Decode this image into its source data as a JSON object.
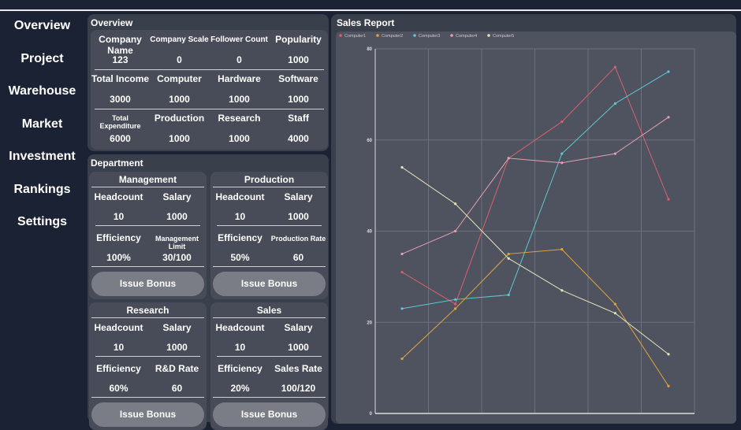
{
  "sidebar": {
    "items": [
      {
        "label": "Overview"
      },
      {
        "label": "Project"
      },
      {
        "label": "Warehouse"
      },
      {
        "label": "Market"
      },
      {
        "label": "Investment"
      },
      {
        "label": "Rankings"
      },
      {
        "label": "Settings"
      }
    ]
  },
  "overview": {
    "title": "Overview",
    "rows": [
      [
        {
          "label": "Company Name",
          "value": "123"
        },
        {
          "label": "Company Scale",
          "value": "0"
        },
        {
          "label": "Follower Count",
          "value": "0"
        },
        {
          "label": "Popularity",
          "value": "1000"
        }
      ],
      [
        {
          "label": "Total Income",
          "value": "3000"
        },
        {
          "label": "Computer",
          "value": "1000"
        },
        {
          "label": "Hardware",
          "value": "1000"
        },
        {
          "label": "Software",
          "value": "1000"
        }
      ],
      [
        {
          "label": "Total Expenditure",
          "value": "6000"
        },
        {
          "label": "Production",
          "value": "1000"
        },
        {
          "label": "Research",
          "value": "1000"
        },
        {
          "label": "Staff",
          "value": "4000"
        }
      ]
    ]
  },
  "department": {
    "title": "Department",
    "cards": [
      {
        "name": "Management",
        "headcount_label": "Headcount",
        "headcount": "10",
        "salary_label": "Salary",
        "salary": "1000",
        "efficiency_label": "Efficiency",
        "efficiency": "100%",
        "metric_label": "Management Limit",
        "metric": "30/100",
        "button": "Issue Bonus"
      },
      {
        "name": "Production",
        "headcount_label": "Headcount",
        "headcount": "10",
        "salary_label": "Salary",
        "salary": "1000",
        "efficiency_label": "Efficiency",
        "efficiency": "50%",
        "metric_label": "Production Rate",
        "metric": "60",
        "button": "Issue Bonus"
      },
      {
        "name": "Research",
        "headcount_label": "Headcount",
        "headcount": "10",
        "salary_label": "Salary",
        "salary": "1000",
        "efficiency_label": "Efficiency",
        "efficiency": "60%",
        "metric_label": "R&D Rate",
        "metric": "60",
        "button": "Issue Bonus"
      },
      {
        "name": "Sales",
        "headcount_label": "Headcount",
        "headcount": "10",
        "salary_label": "Salary",
        "salary": "1000",
        "efficiency_label": "Efficiency",
        "efficiency": "20%",
        "metric_label": "Sales Rate",
        "metric": "100/120",
        "button": "Issue Bonus"
      }
    ]
  },
  "chart_data": {
    "type": "line",
    "title": "Sales Report",
    "legend_position": "top-left",
    "grid": true,
    "ylim": [
      0,
      80
    ],
    "yticks": [
      0,
      20,
      40,
      60,
      80
    ],
    "x": [
      1,
      2,
      3,
      4,
      5,
      6
    ],
    "series": [
      {
        "name": "Computer1",
        "color": "#d9606e",
        "values": [
          31,
          24,
          56,
          64,
          76,
          47
        ]
      },
      {
        "name": "Computer2",
        "color": "#e3a43a",
        "values": [
          12,
          23,
          35,
          36,
          24,
          6
        ]
      },
      {
        "name": "Computer3",
        "color": "#5ec8d0",
        "values": [
          23,
          25,
          26,
          57,
          68,
          75
        ]
      },
      {
        "name": "Computer4",
        "color": "#e3a0b0",
        "values": [
          35,
          40,
          56,
          55,
          57,
          65
        ]
      },
      {
        "name": "Computer5",
        "color": "#e6e2b8",
        "values": [
          54,
          46,
          34,
          27,
          22,
          13
        ]
      }
    ]
  }
}
